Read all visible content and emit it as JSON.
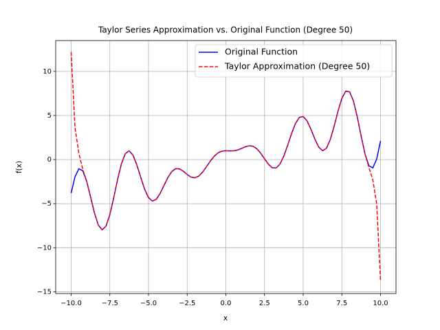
{
  "chart_data": {
    "type": "line",
    "title": "Taylor Series Approximation vs. Original Function (Degree 50)",
    "xlabel": "x",
    "ylabel": "f(x)",
    "x": [
      -10,
      -9.75,
      -9.5,
      -9.25,
      -9,
      -8.75,
      -8.5,
      -8.25,
      -8,
      -7.75,
      -7.5,
      -7.25,
      -7,
      -6.75,
      -6.5,
      -6.25,
      -6,
      -5.75,
      -5.5,
      -5.25,
      -5,
      -4.75,
      -4.5,
      -4.25,
      -4,
      -3.75,
      -3.5,
      -3.25,
      -3,
      -2.75,
      -2.5,
      -2.25,
      -2,
      -1.75,
      -1.5,
      -1.25,
      -1,
      -0.75,
      -0.5,
      -0.25,
      0,
      0.25,
      0.5,
      0.75,
      1,
      1.25,
      1.5,
      1.75,
      2,
      2.25,
      2.5,
      2.75,
      3,
      3.25,
      3.5,
      3.75,
      4,
      4.25,
      4.5,
      4.75,
      5,
      5.25,
      5.5,
      5.75,
      6,
      6.25,
      6.5,
      6.75,
      7,
      7.25,
      7.5,
      7.75,
      8,
      8.25,
      8.5,
      8.75,
      9,
      9.25,
      9.5,
      9.75,
      10
    ],
    "series": [
      {
        "name": "Original Function",
        "color": "#0000ff",
        "dash": false,
        "values": [
          -3.799,
          -1.943,
          -1.051,
          -1.266,
          -2.44,
          -4.196,
          -6.022,
          -7.411,
          -7.977,
          -7.563,
          -6.252,
          -4.344,
          -2.268,
          -0.474,
          0.676,
          0.993,
          0.492,
          -0.624,
          -2.029,
          -3.361,
          -4.314,
          -4.706,
          -4.511,
          -3.85,
          -2.945,
          -2.046,
          -1.367,
          -1.032,
          -1.05,
          -1.325,
          -1.697,
          -1.99,
          -2.07,
          -1.873,
          -1.422,
          -0.811,
          -0.168,
          0.383,
          0.763,
          0.954,
          1,
          0.984,
          0.993,
          1.08,
          1.248,
          1.441,
          1.563,
          1.516,
          1.237,
          0.734,
          0.094,
          -0.524,
          -0.93,
          -0.956,
          -0.506,
          0.405,
          1.638,
          2.958,
          4.089,
          4.781,
          4.881,
          4.385,
          3.446,
          2.347,
          1.429,
          1.006,
          1.277,
          2.26,
          3.775,
          5.48,
          6.945,
          7.77,
          7.686,
          6.64,
          4.818,
          2.634,
          0.617,
          -0.704,
          -0.944,
          0.048,
          2.12
        ]
      },
      {
        "name": "Taylor Approximation (Degree 50)",
        "color": "#ff0000",
        "dash": true,
        "values": [
          12.2,
          3.6,
          0.7,
          -1.1,
          -2.44,
          -4.196,
          -6.022,
          -7.411,
          -7.977,
          -7.563,
          -6.252,
          -4.344,
          -2.268,
          -0.474,
          0.676,
          0.993,
          0.492,
          -0.624,
          -2.029,
          -3.361,
          -4.314,
          -4.706,
          -4.511,
          -3.85,
          -2.945,
          -2.046,
          -1.367,
          -1.032,
          -1.05,
          -1.325,
          -1.697,
          -1.99,
          -2.07,
          -1.873,
          -1.422,
          -0.811,
          -0.168,
          0.383,
          0.763,
          0.954,
          1,
          0.984,
          0.993,
          1.08,
          1.248,
          1.441,
          1.563,
          1.516,
          1.237,
          0.734,
          0.094,
          -0.524,
          -0.93,
          -0.956,
          -0.506,
          0.405,
          1.638,
          2.958,
          4.089,
          4.781,
          4.881,
          4.385,
          3.446,
          2.347,
          1.429,
          1.006,
          1.277,
          2.26,
          3.775,
          5.48,
          6.945,
          7.77,
          7.686,
          6.64,
          4.818,
          2.634,
          0.617,
          -0.9,
          -2.3,
          -5.0,
          -13.7
        ]
      }
    ],
    "xlim": [
      -11,
      11
    ],
    "ylim": [
      -15.2,
      13.5
    ],
    "xticks": [
      {
        "value": -10,
        "label": "−10.0"
      },
      {
        "value": -7.5,
        "label": "−7.5"
      },
      {
        "value": -5,
        "label": "−5.0"
      },
      {
        "value": -2.5,
        "label": "−2.5"
      },
      {
        "value": 0,
        "label": "0.0"
      },
      2.5,
      {
        "value": 5,
        "label": "5.0"
      },
      7.5,
      {
        "value": 10,
        "label": "10.0"
      }
    ],
    "yticks": [
      {
        "value": -15,
        "label": "−15"
      },
      {
        "value": -10,
        "label": "−10"
      },
      {
        "value": -5,
        "label": "−5"
      },
      0,
      5,
      10
    ],
    "grid": true,
    "legend": "upper-right"
  }
}
